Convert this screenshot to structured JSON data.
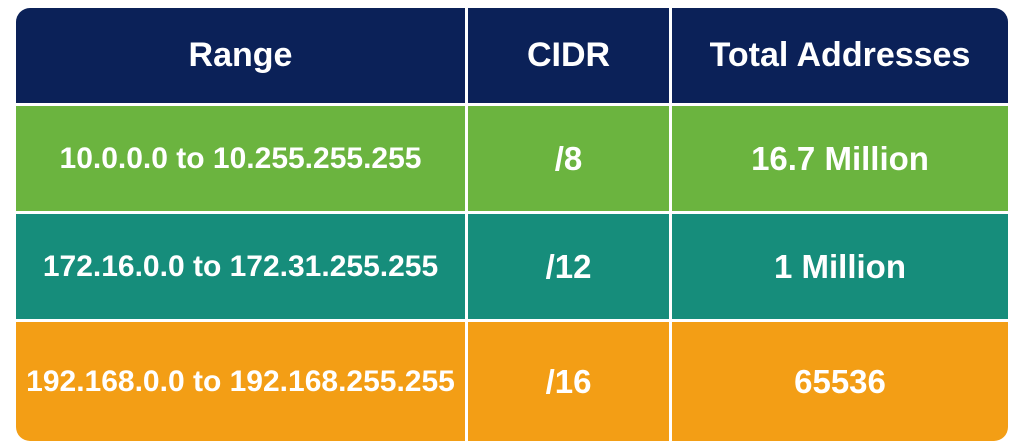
{
  "table": {
    "headers": [
      "Range",
      "CIDR",
      "Total Addresses"
    ],
    "rows": [
      {
        "range": "10.0.0.0 to 10.255.255.255",
        "cidr": "/8",
        "total": "16.7 Million",
        "color": "#6bb43f"
      },
      {
        "range": "172.16.0.0 to 172.31.255.255",
        "cidr": "/12",
        "total": "1 Million",
        "color": "#168d7b"
      },
      {
        "range": "192.168.0.0 to 192.168.255.255",
        "cidr": "/16",
        "total": "65536",
        "color": "#f39e15"
      }
    ],
    "header_color": "#0b2158"
  }
}
